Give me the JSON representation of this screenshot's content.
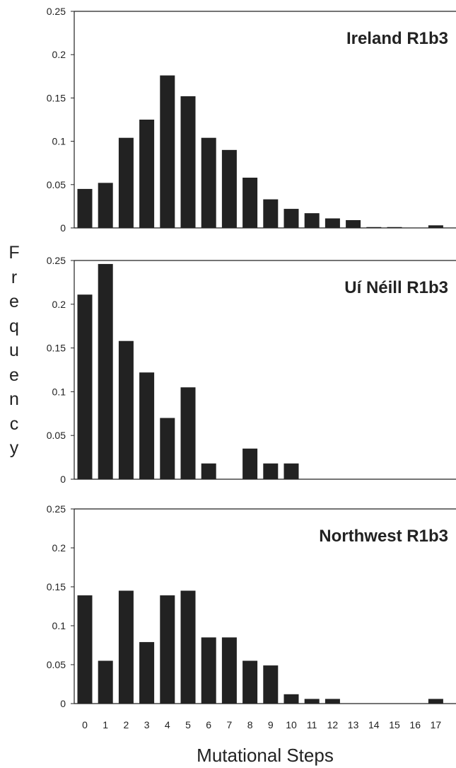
{
  "figure": {
    "ylabel": "Frequency",
    "xlabel": "Mutational Steps",
    "colors": {
      "bar": "#222222",
      "axis": "#222222",
      "text": "#222222"
    }
  },
  "chart_data": [
    {
      "type": "bar",
      "title": "Ireland R1b3",
      "categories": [
        "0",
        "1",
        "2",
        "3",
        "4",
        "5",
        "6",
        "7",
        "8",
        "9",
        "10",
        "11",
        "12",
        "13",
        "14",
        "15",
        "16",
        "17"
      ],
      "values": [
        0.045,
        0.052,
        0.104,
        0.125,
        0.176,
        0.152,
        0.104,
        0.09,
        0.058,
        0.033,
        0.022,
        0.017,
        0.011,
        0.009,
        0.001,
        0.001,
        0.0,
        0.003
      ],
      "yticks": [
        "0",
        "0.05",
        "0.1",
        "0.15",
        "0.2",
        "0.25"
      ],
      "ylim": [
        0,
        0.25
      ],
      "grid": false
    },
    {
      "type": "bar",
      "title": "Uí Néill R1b3",
      "categories": [
        "0",
        "1",
        "2",
        "3",
        "4",
        "5",
        "6",
        "7",
        "8",
        "9",
        "10",
        "11",
        "12",
        "13",
        "14",
        "15",
        "16",
        "17"
      ],
      "values": [
        0.211,
        0.246,
        0.158,
        0.122,
        0.07,
        0.105,
        0.018,
        0.0,
        0.035,
        0.018,
        0.018,
        0,
        0,
        0,
        0,
        0,
        0,
        0
      ],
      "yticks": [
        "0",
        "0.05",
        "0.1",
        "0.15",
        "0.2",
        "0.25"
      ],
      "ylim": [
        0,
        0.25
      ],
      "grid": false
    },
    {
      "type": "bar",
      "title": "Northwest R1b3",
      "categories": [
        "0",
        "1",
        "2",
        "3",
        "4",
        "5",
        "6",
        "7",
        "8",
        "9",
        "10",
        "11",
        "12",
        "13",
        "14",
        "15",
        "16",
        "17"
      ],
      "values": [
        0.139,
        0.055,
        0.145,
        0.079,
        0.139,
        0.145,
        0.085,
        0.085,
        0.055,
        0.049,
        0.012,
        0.006,
        0.006,
        0,
        0,
        0,
        0,
        0.006
      ],
      "yticks": [
        "0",
        "0.05",
        "0.1",
        "0.15",
        "0.2",
        "0.25"
      ],
      "ylim": [
        0,
        0.25
      ],
      "grid": false
    }
  ]
}
